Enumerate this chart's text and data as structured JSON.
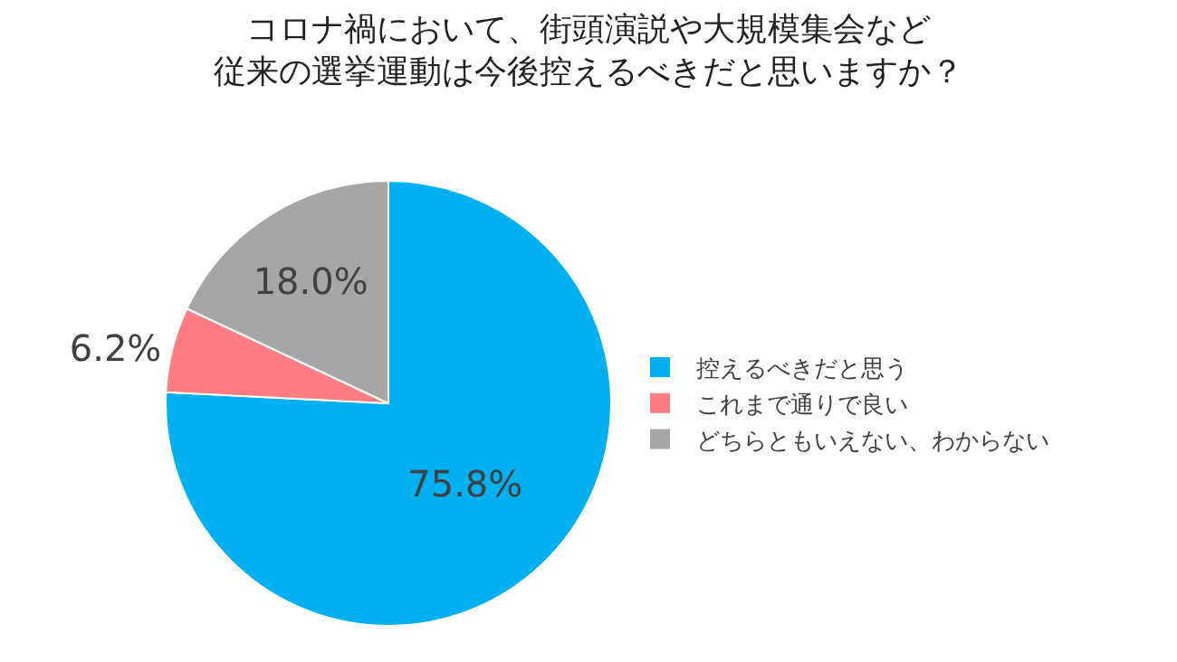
{
  "chart_data": {
    "type": "pie",
    "title": "コロナ禍において、街頭演説や大規模集会など従来の選挙運動は今後控えるべきだと思いますか？",
    "categories": [
      "控えるべきだと思う",
      "これまで通りで良い",
      "どちらともいえない、わからない"
    ],
    "values": [
      75.8,
      6.2,
      18.0
    ],
    "colors": [
      "#00b0f0",
      "#ff7c80",
      "#a6a6a6"
    ],
    "value_labels": [
      "75.8%",
      "6.2%",
      "18.0%"
    ],
    "legend": "right"
  }
}
